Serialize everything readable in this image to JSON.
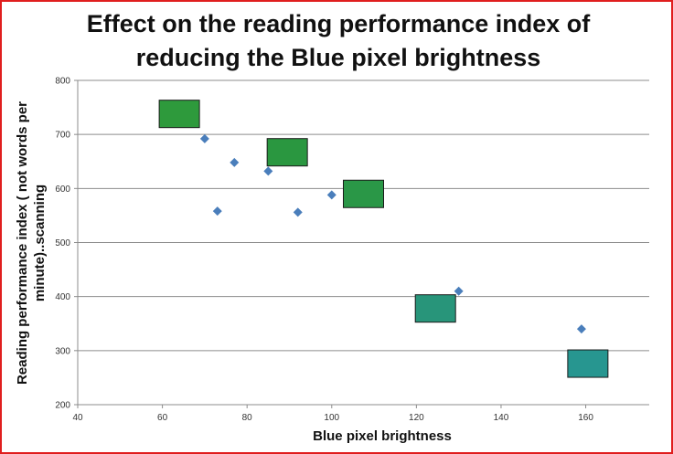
{
  "chart_data": {
    "type": "scatter",
    "title_lines": [
      "Effect on the reading performance index of",
      "reducing the Blue pixel brightness"
    ],
    "xlabel": "Blue pixel brightness",
    "ylabel_lines": [
      "Reading performance index ( not words per",
      "minute)..scanning"
    ],
    "xlim": [
      40,
      175
    ],
    "ylim": [
      200,
      800
    ],
    "xticks": [
      40,
      60,
      80,
      100,
      120,
      140,
      160
    ],
    "yticks": [
      200,
      300,
      400,
      500,
      600,
      700,
      800
    ],
    "grid": "horizontal",
    "marker_color": "#4a7ebb",
    "points": [
      {
        "x": 70,
        "y": 692
      },
      {
        "x": 73,
        "y": 558
      },
      {
        "x": 77,
        "y": 648
      },
      {
        "x": 85,
        "y": 632
      },
      {
        "x": 92,
        "y": 556
      },
      {
        "x": 100,
        "y": 588
      },
      {
        "x": 130,
        "y": 410
      },
      {
        "x": 159,
        "y": 340
      }
    ],
    "color_swatches": [
      {
        "x_center": 64,
        "y_center": 738,
        "color": "#2e9a3c"
      },
      {
        "x_center": 89.5,
        "y_center": 667,
        "color": "#2a9740"
      },
      {
        "x_center": 107.5,
        "y_center": 590,
        "color": "#2a9747"
      },
      {
        "x_center": 124.5,
        "y_center": 378,
        "color": "#28957a"
      },
      {
        "x_center": 160.5,
        "y_center": 276,
        "color": "#279690"
      }
    ]
  }
}
